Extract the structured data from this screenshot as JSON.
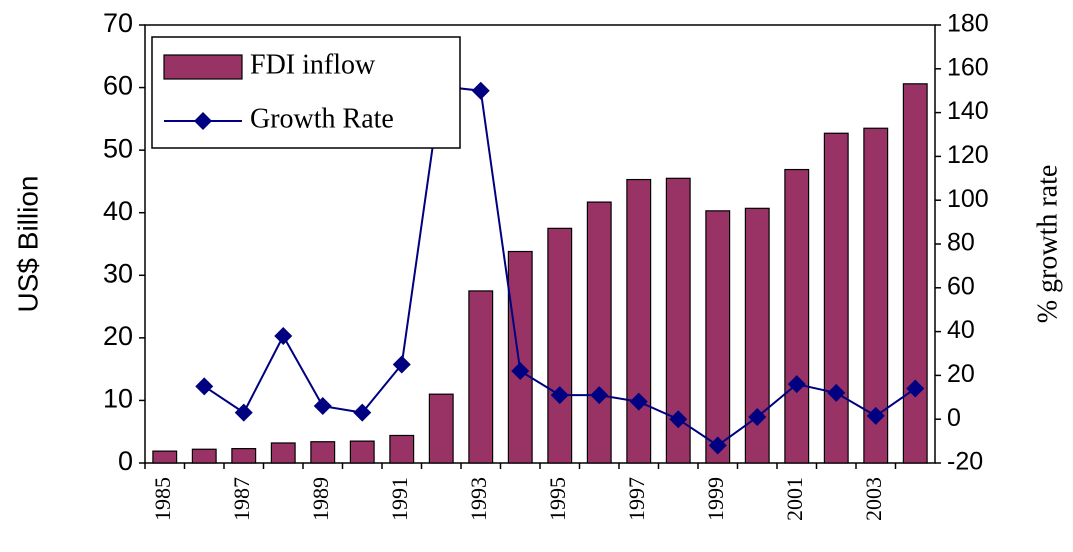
{
  "chart_data": {
    "type": "bar-line",
    "categories": [
      "1985",
      null,
      "1987",
      null,
      "1989",
      null,
      "1991",
      null,
      "1993",
      null,
      "1995",
      null,
      "1997",
      null,
      "1999",
      null,
      "2001",
      null,
      "2003",
      null
    ],
    "series": [
      {
        "name": "FDI inflow",
        "color": "#993366",
        "type": "bar",
        "values": [
          1.9,
          2.2,
          2.3,
          3.2,
          3.4,
          3.5,
          4.4,
          11.0,
          27.5,
          33.8,
          37.5,
          41.7,
          45.3,
          45.5,
          40.3,
          40.7,
          46.9,
          52.7,
          53.5,
          60.6
        ]
      },
      {
        "name": "Growth Rate",
        "color": "#000080",
        "type": "line",
        "axis": "y2",
        "values": [
          null,
          15,
          3,
          38,
          6,
          3,
          25,
          152,
          150,
          22,
          11,
          11,
          8,
          0,
          -12,
          1,
          16,
          12,
          1.5,
          14
        ]
      }
    ],
    "ylabel": "US$ Billion",
    "y2label": "% growth rate",
    "ylim": [
      0,
      70
    ],
    "yticks": [
      0,
      10,
      20,
      30,
      40,
      50,
      60,
      70
    ],
    "y2lim": [
      -20,
      180
    ],
    "y2ticks": [
      -20,
      0,
      20,
      40,
      60,
      80,
      100,
      120,
      140,
      160,
      180
    ],
    "legend": "upper left"
  }
}
